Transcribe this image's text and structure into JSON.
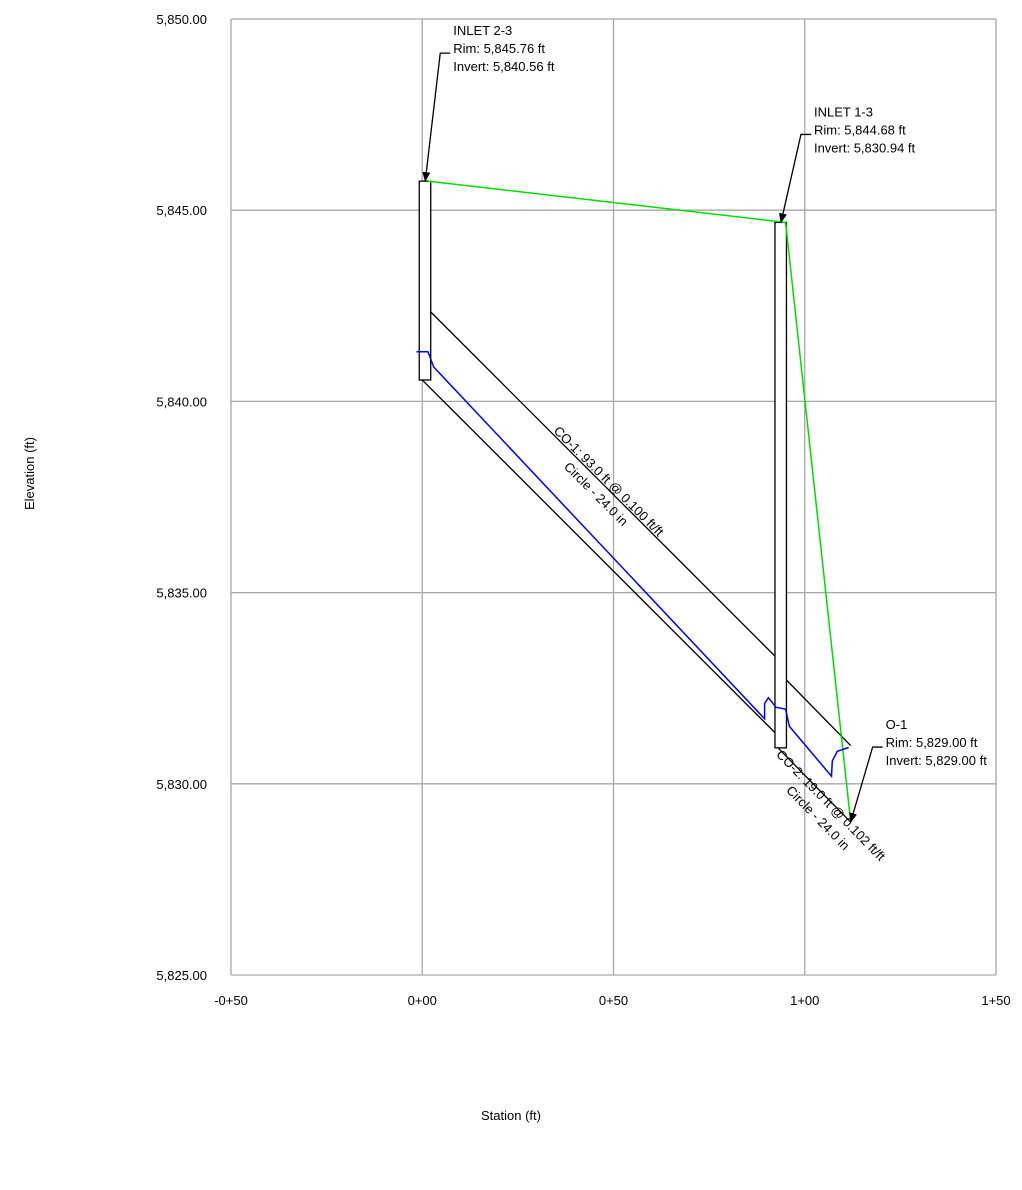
{
  "chart_data": {
    "type": "line",
    "xlabel": "Station (ft)",
    "ylabel": "Elevation (ft)",
    "xlim": [
      -50,
      150
    ],
    "ylim": [
      5825,
      5850
    ],
    "x_ticks": [
      {
        "value": -50,
        "label": "-0+50"
      },
      {
        "value": 0,
        "label": "0+00"
      },
      {
        "value": 50,
        "label": "0+50"
      },
      {
        "value": 100,
        "label": "1+00"
      },
      {
        "value": 150,
        "label": "1+50"
      }
    ],
    "y_ticks": [
      {
        "value": 5825,
        "label": "5,825.00"
      },
      {
        "value": 5830,
        "label": "5,830.00"
      },
      {
        "value": 5835,
        "label": "5,835.00"
      },
      {
        "value": 5840,
        "label": "5,840.00"
      },
      {
        "value": 5845,
        "label": "5,845.00"
      },
      {
        "value": 5850,
        "label": "5,850.00"
      }
    ],
    "grid": true,
    "structures": [
      {
        "name": "INLET 2-3",
        "rim_label": "Rim: 5,845.76 ft",
        "invert_label": "Invert: 5,840.56 ft",
        "station": 0,
        "rim": 5845.76,
        "invert": 5840.56,
        "kind": "inlet"
      },
      {
        "name": "INLET 1-3",
        "rim_label": "Rim: 5,844.68 ft",
        "invert_label": "Invert: 5,830.94 ft",
        "station": 93,
        "rim": 5844.68,
        "invert": 5830.94,
        "kind": "inlet"
      },
      {
        "name": "O-1",
        "rim_label": "Rim: 5,829.00 ft",
        "invert_label": "Invert: 5,829.00 ft",
        "station": 112,
        "rim": 5829.0,
        "invert": 5829.0,
        "kind": "outlet"
      }
    ],
    "pipes": [
      {
        "label_line1": "CO-1: 93.0 ft @ 0.100 ft/ft",
        "label_line2": "Circle - 24.0 in",
        "x_start": 0,
        "x_end": 93,
        "invert_start": 5840.56,
        "invert_end": 5831.26,
        "diameter_ft": 2.0
      },
      {
        "label_line1": "CO-2: 19.0 ft @ 0.102 ft/ft",
        "label_line2": "Circle - 24.0 in",
        "x_start": 93,
        "x_end": 112,
        "invert_start": 5830.94,
        "invert_end": 5829.0,
        "diameter_ft": 2.0
      }
    ],
    "series": [
      {
        "color": "#00dd00",
        "points": [
          [
            1.5,
            5845.76
          ],
          [
            95,
            5844.68
          ],
          [
            112,
            5829.0
          ]
        ]
      },
      {
        "color": "#0000ff",
        "points": [
          [
            -1.5,
            5841.3
          ],
          [
            1.5,
            5841.3
          ],
          [
            3,
            5840.9
          ],
          [
            89.5,
            5831.7
          ],
          [
            89.5,
            5832.1
          ],
          [
            90.5,
            5832.25
          ],
          [
            92.5,
            5832.0
          ],
          [
            95,
            5831.95
          ],
          [
            96,
            5831.5
          ],
          [
            107,
            5830.2
          ],
          [
            107.2,
            5830.6
          ],
          [
            108.5,
            5830.85
          ],
          [
            111.5,
            5830.95
          ]
        ]
      }
    ]
  }
}
